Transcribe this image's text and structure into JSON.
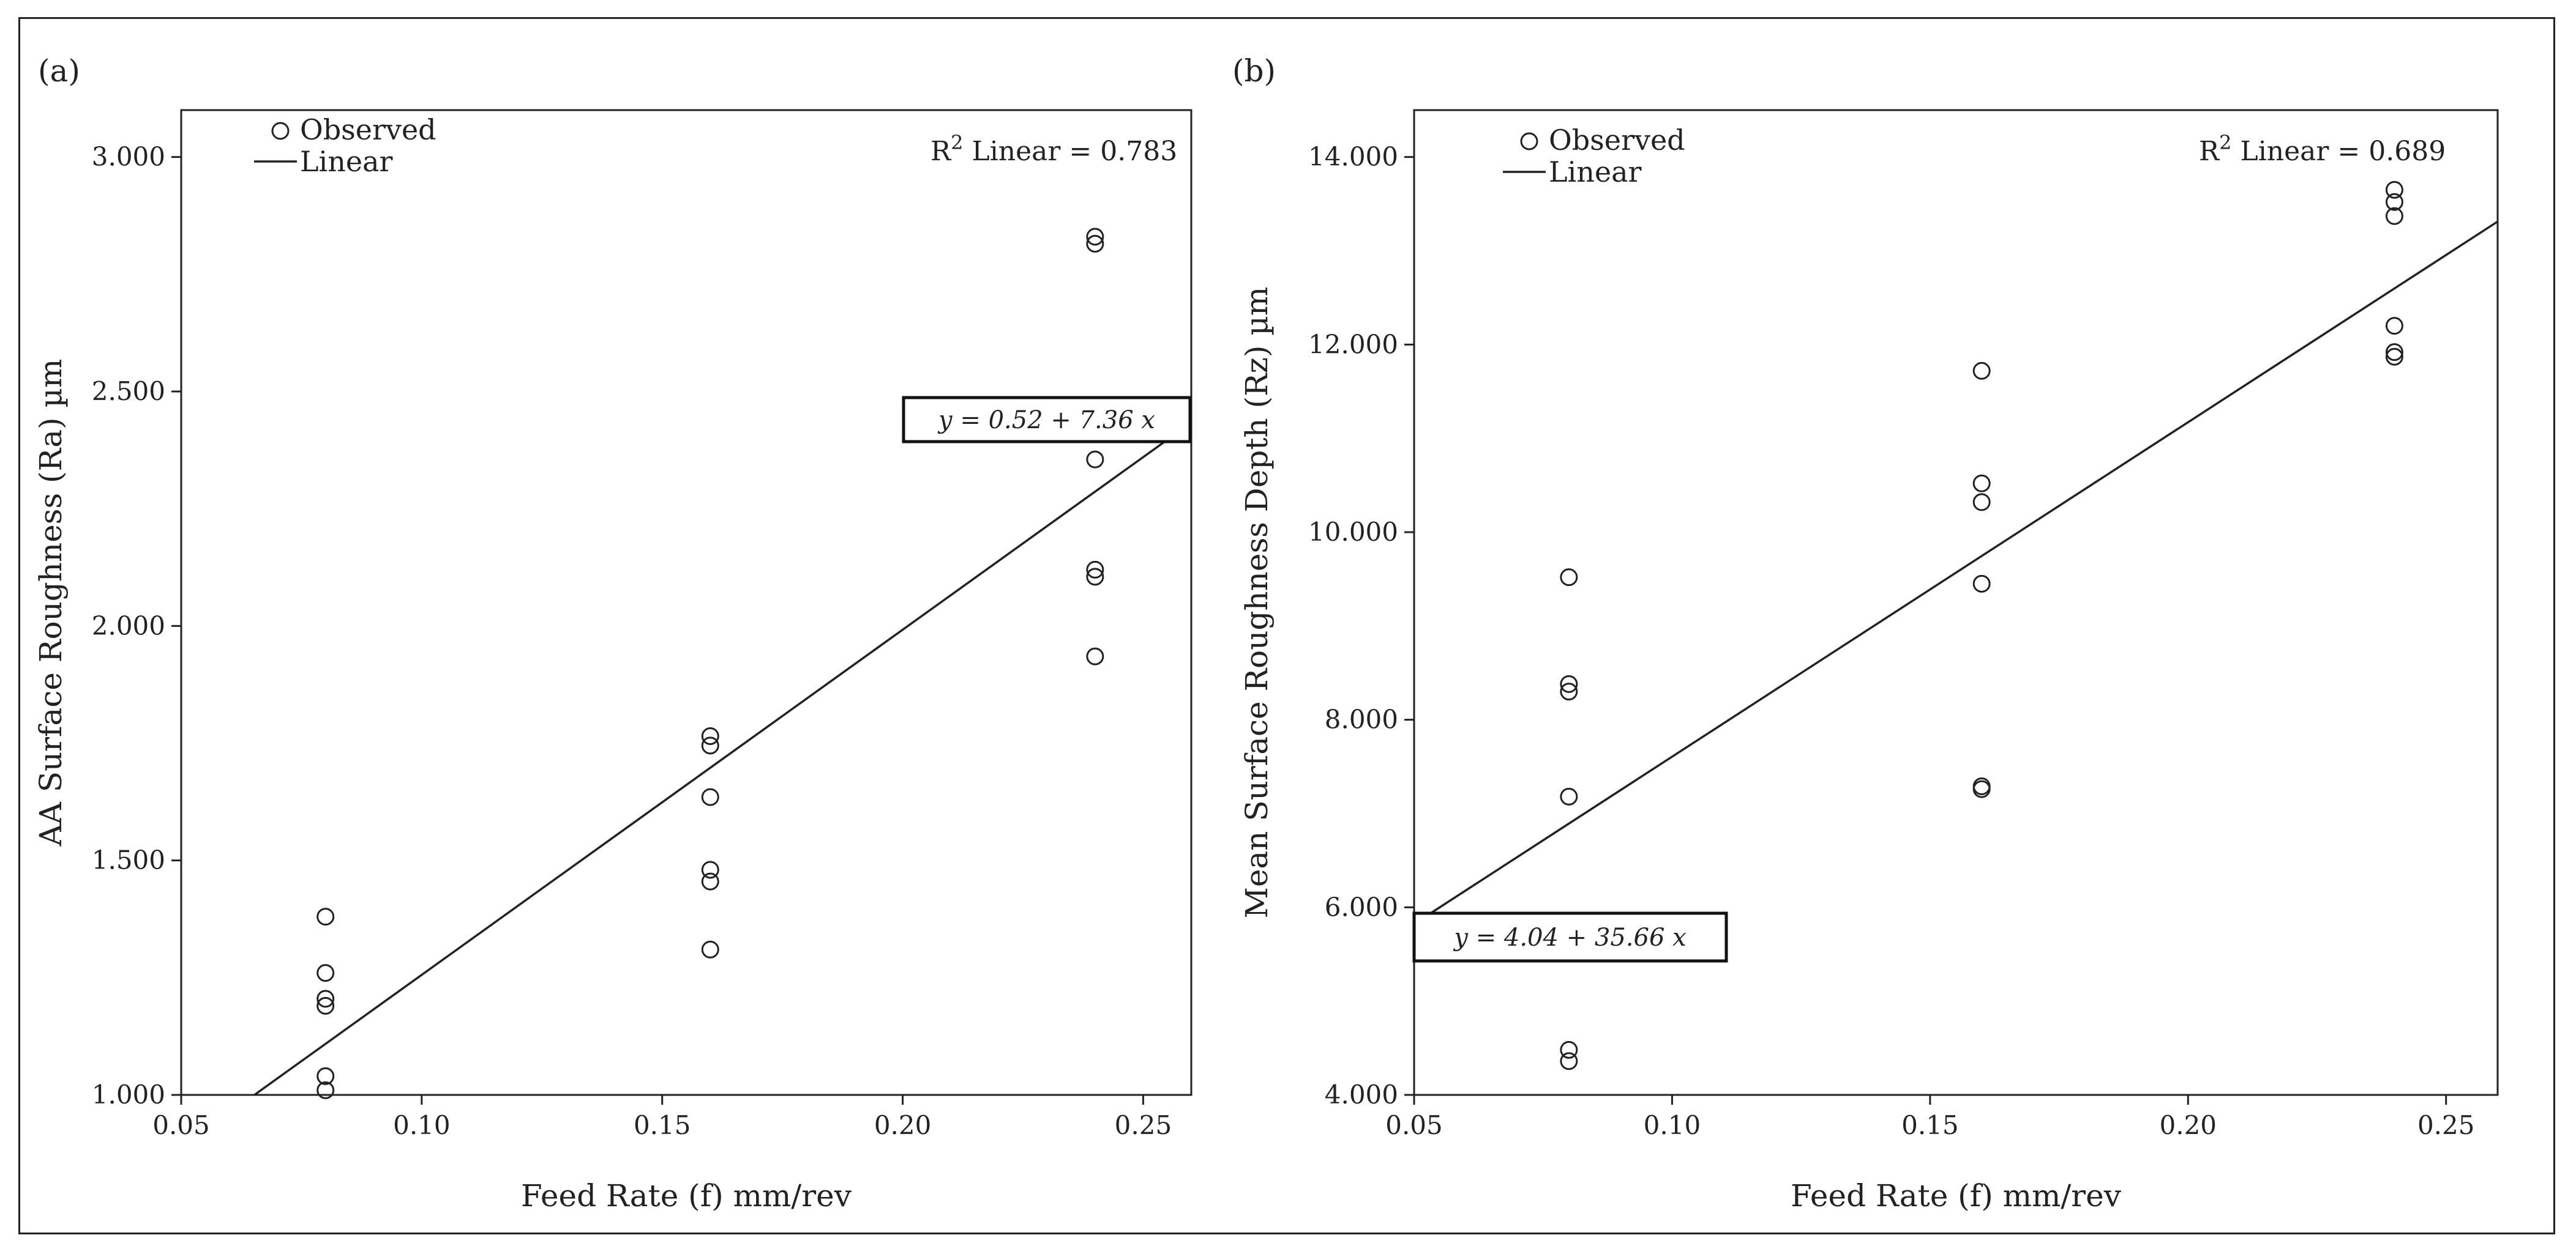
{
  "chart_data": [
    {
      "type": "scatter",
      "panel_label": "(a)",
      "xlabel": "Feed Rate (f) mm/rev",
      "ylabel": "AA Surface Roughness (Ra) µm",
      "xlim": [
        0.05,
        0.26
      ],
      "ylim": [
        1.0,
        3.1
      ],
      "x_ticks": [
        0.05,
        0.1,
        0.15,
        0.2,
        0.25
      ],
      "x_tick_labels": [
        "0.05",
        "0.10",
        "0.15",
        "0.20",
        "0.25"
      ],
      "y_ticks": [
        1.0,
        1.5,
        2.0,
        2.5,
        3.0
      ],
      "y_tick_labels": [
        "1.000",
        "1.500",
        "2.000",
        "2.500",
        "3.000"
      ],
      "legend": {
        "observed": "Observed",
        "linear": "Linear",
        "position": "top-left"
      },
      "r2_label": "R",
      "r2_text": "Linear = 0.783",
      "equation": "y = 0.52 + 7.36 x",
      "fit": {
        "intercept": 0.52,
        "slope": 7.36
      },
      "series": [
        {
          "name": "Observed",
          "points": [
            [
              0.08,
              1.38
            ],
            [
              0.08,
              1.26
            ],
            [
              0.08,
              1.205
            ],
            [
              0.08,
              1.19
            ],
            [
              0.08,
              1.04
            ],
            [
              0.08,
              1.01
            ],
            [
              0.16,
              1.765
            ],
            [
              0.16,
              1.745
            ],
            [
              0.16,
              1.635
            ],
            [
              0.16,
              1.48
            ],
            [
              0.16,
              1.455
            ],
            [
              0.16,
              1.31
            ],
            [
              0.24,
              2.83
            ],
            [
              0.24,
              2.815
            ],
            [
              0.24,
              2.355
            ],
            [
              0.24,
              2.12
            ],
            [
              0.24,
              2.105
            ],
            [
              0.24,
              1.935
            ]
          ]
        }
      ]
    },
    {
      "type": "scatter",
      "panel_label": "(b)",
      "xlabel": "Feed Rate (f) mm/rev",
      "ylabel": "Mean Surface Roughness Depth (Rz) µm",
      "xlim": [
        0.05,
        0.26
      ],
      "ylim": [
        4.0,
        14.5
      ],
      "x_ticks": [
        0.05,
        0.1,
        0.15,
        0.2,
        0.25
      ],
      "x_tick_labels": [
        "0.05",
        "0.10",
        "0.15",
        "0.20",
        "0.25"
      ],
      "y_ticks": [
        4.0,
        6.0,
        8.0,
        10.0,
        12.0,
        14.0
      ],
      "y_tick_labels": [
        "4.000",
        "6.000",
        "8.000",
        "10.000",
        "12.000",
        "14.000"
      ],
      "legend": {
        "observed": "Observed",
        "linear": "Linear",
        "position": "top-left"
      },
      "r2_label": "R",
      "r2_text": "Linear = 0.689",
      "equation": "y = 4.04 + 35.66 x",
      "fit": {
        "intercept": 4.04,
        "slope": 35.66
      },
      "series": [
        {
          "name": "Observed",
          "points": [
            [
              0.08,
              9.52
            ],
            [
              0.08,
              8.38
            ],
            [
              0.08,
              8.3
            ],
            [
              0.08,
              7.18
            ],
            [
              0.08,
              4.48
            ],
            [
              0.08,
              4.36
            ],
            [
              0.16,
              11.72
            ],
            [
              0.16,
              10.52
            ],
            [
              0.16,
              10.32
            ],
            [
              0.16,
              9.45
            ],
            [
              0.16,
              7.29
            ],
            [
              0.16,
              7.26
            ],
            [
              0.24,
              13.65
            ],
            [
              0.24,
              13.52
            ],
            [
              0.24,
              13.37
            ],
            [
              0.24,
              12.2
            ],
            [
              0.24,
              11.92
            ],
            [
              0.24,
              11.87
            ]
          ]
        }
      ]
    }
  ]
}
